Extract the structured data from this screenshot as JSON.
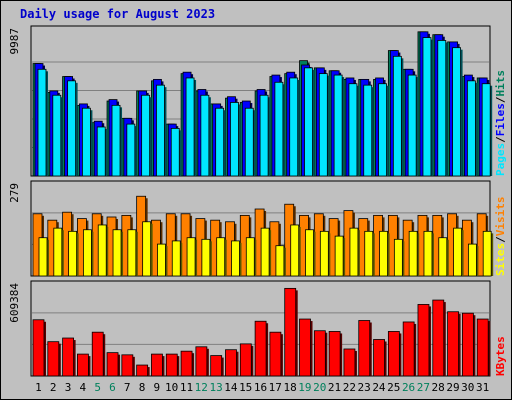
{
  "title": "Daily usage for August 2023",
  "chart_data": [
    {
      "type": "bar",
      "panel": "hits-files-pages",
      "categories": [
        "1",
        "2",
        "3",
        "4",
        "5",
        "6",
        "7",
        "8",
        "9",
        "10",
        "11",
        "12",
        "13",
        "14",
        "15",
        "16",
        "17",
        "18",
        "19",
        "20",
        "21",
        "22",
        "23",
        "24",
        "25",
        "26",
        "27",
        "28",
        "29",
        "30",
        "31"
      ],
      "weekend_days": [
        "5",
        "6",
        "12",
        "13",
        "19",
        "20",
        "26",
        "27"
      ],
      "ylabel_max": "9987",
      "ymax": 9987,
      "legend": [
        "Pages",
        "/",
        "Files",
        "/",
        "Hits"
      ],
      "series": [
        {
          "name": "Hits",
          "color": "#00805c",
          "values": [
            7800,
            5800,
            6900,
            4900,
            3700,
            5200,
            4000,
            5900,
            6600,
            3600,
            7100,
            5900,
            5000,
            5400,
            5100,
            5900,
            6900,
            7100,
            8000,
            7500,
            7300,
            6700,
            6700,
            6700,
            8700,
            7400,
            10000,
            9800,
            9300,
            6900,
            6800
          ]
        },
        {
          "name": "Files",
          "color": "#0000ff",
          "values": [
            7800,
            5900,
            6900,
            5000,
            3800,
            5300,
            4000,
            5900,
            6700,
            3600,
            7200,
            6000,
            5000,
            5500,
            5200,
            6000,
            7000,
            7200,
            7700,
            7500,
            7300,
            6800,
            6700,
            6800,
            8700,
            7400,
            10000,
            9800,
            9300,
            7000,
            6800
          ]
        },
        {
          "name": "Pages",
          "color": "#00e6ff",
          "values": [
            7400,
            5600,
            6600,
            4700,
            3400,
            4900,
            3600,
            5600,
            6300,
            3300,
            6800,
            5600,
            4700,
            5100,
            4700,
            5600,
            6500,
            6800,
            7500,
            7100,
            7000,
            6400,
            6300,
            6400,
            8300,
            7000,
            9600,
            9400,
            8900,
            6600,
            6400
          ]
        }
      ]
    },
    {
      "type": "bar",
      "panel": "visits-sites",
      "ylabel_max": "279",
      "ymax": 279,
      "legend": [
        "Sites",
        "/",
        "Visits"
      ],
      "series": [
        {
          "name": "Visits",
          "color": "#ff8000",
          "values": [
            195,
            175,
            200,
            180,
            195,
            185,
            190,
            250,
            175,
            195,
            195,
            180,
            175,
            170,
            190,
            210,
            170,
            225,
            190,
            195,
            180,
            205,
            180,
            190,
            190,
            175,
            190,
            190,
            195,
            175,
            195
          ]
        },
        {
          "name": "Sites",
          "color": "#ffff00",
          "values": [
            120,
            150,
            140,
            145,
            160,
            145,
            145,
            170,
            100,
            110,
            120,
            115,
            120,
            110,
            120,
            150,
            95,
            160,
            145,
            140,
            125,
            150,
            140,
            140,
            115,
            140,
            140,
            120,
            150,
            100,
            140
          ]
        }
      ]
    },
    {
      "type": "bar",
      "panel": "kbytes",
      "ylabel_max": "609384",
      "ymax": 609384,
      "legend": [
        "KBytes"
      ],
      "series": [
        {
          "name": "KBytes",
          "color": "#ff0000",
          "values": [
            385000,
            235000,
            260000,
            150000,
            300000,
            160000,
            145000,
            75000,
            150000,
            150000,
            170000,
            200000,
            140000,
            180000,
            220000,
            375000,
            300000,
            600000,
            390000,
            310000,
            305000,
            185000,
            380000,
            250000,
            305000,
            370000,
            490000,
            520000,
            440000,
            430000,
            390000
          ]
        }
      ]
    }
  ]
}
